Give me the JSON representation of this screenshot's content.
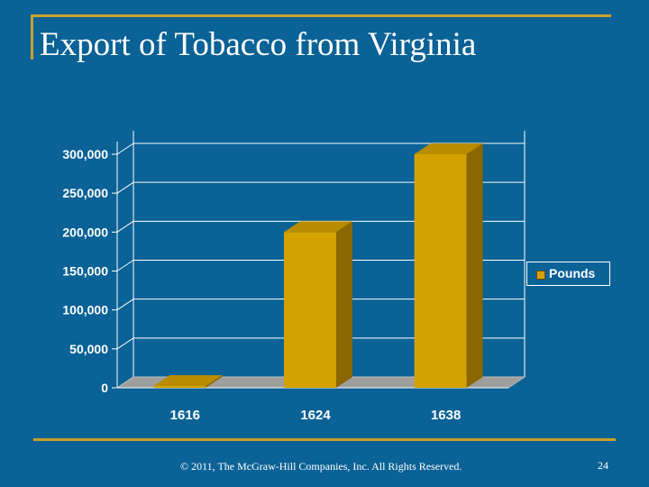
{
  "slide": {
    "title": "Export of Tobacco from Virginia",
    "footer": "© 2011, The McGraw-Hill Companies, Inc. All Rights Reserved.",
    "page_number": "24"
  },
  "colors": {
    "background": "#0a6296",
    "accent_rule": "#c9a227",
    "bar_front": "#d4a200",
    "bar_side": "#8a6700",
    "bar_top": "#b98c00",
    "floor": "#9e9e9e",
    "grid": "#ffffff",
    "text": "#ffffff"
  },
  "chart_data": {
    "type": "bar",
    "style": "3d-column",
    "categories": [
      "1616",
      "1624",
      "1638"
    ],
    "series": [
      {
        "name": "Pounds",
        "values": [
          2300,
          200000,
          300000
        ]
      }
    ],
    "ylim": [
      0,
      300000
    ],
    "yticks": [
      "300,000",
      "250,000",
      "200,000",
      "150,000",
      "100,000",
      "50,000",
      "0"
    ],
    "ytick_values": [
      300000,
      250000,
      200000,
      150000,
      100000,
      50000,
      0
    ],
    "grid": true,
    "legend": "right"
  }
}
